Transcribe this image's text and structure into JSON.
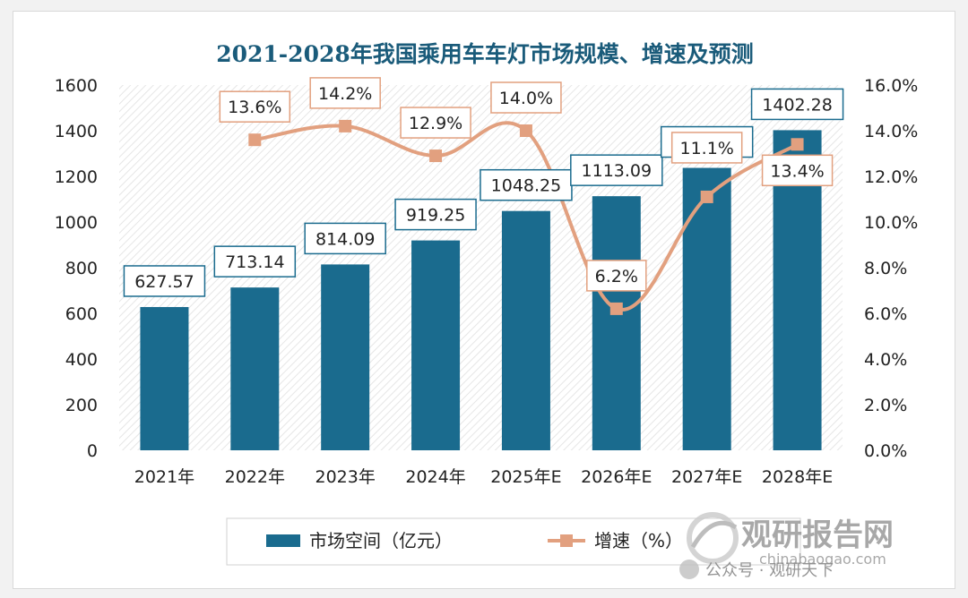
{
  "chart_data": {
    "type": "bar",
    "title": "2021-2028年我国乘用车车灯市场规模、增速及预测",
    "categories": [
      "2021年",
      "2022年",
      "2023年",
      "2024年",
      "2025年E",
      "2026年E",
      "2027年E",
      "2028年E"
    ],
    "series": [
      {
        "name": "市场空间（亿元）",
        "type": "bar",
        "axis": "left",
        "values": [
          627.57,
          713.14,
          814.09,
          919.25,
          1048.25,
          1113.09,
          1237.08,
          1402.28
        ],
        "labels": [
          "627.57",
          "713.14",
          "814.09",
          "919.25",
          "1048.25",
          "1113.09",
          "1237.08",
          "1402.28"
        ]
      },
      {
        "name": "增速（%）",
        "type": "line",
        "axis": "right",
        "values": [
          null,
          13.6,
          14.2,
          12.9,
          14.0,
          6.2,
          11.1,
          13.4
        ],
        "labels": [
          "",
          "13.6%",
          "14.2%",
          "12.9%",
          "14.0%",
          "6.2%",
          "11.1%",
          "13.4%"
        ]
      }
    ],
    "y_left": {
      "min": 0,
      "max": 1600,
      "ticks": [
        "0",
        "200",
        "400",
        "600",
        "800",
        "1000",
        "1200",
        "1400",
        "1600"
      ]
    },
    "y_right": {
      "min": 0,
      "max": 16,
      "ticks": [
        "0.0%",
        "2.0%",
        "4.0%",
        "6.0%",
        "8.0%",
        "10.0%",
        "12.0%",
        "14.0%",
        "16.0%"
      ]
    },
    "legend_position": "bottom",
    "colors": {
      "bar": "#1a6b8e",
      "line": "#e2a07f",
      "title": "#1a5b7a",
      "label_border": "#1a6b8e",
      "line_label_border": "#e2a07f"
    }
  },
  "watermark": {
    "brand": "观研报告网",
    "site": "chinabaogao.com",
    "account": "公众号 · 观研天下"
  }
}
